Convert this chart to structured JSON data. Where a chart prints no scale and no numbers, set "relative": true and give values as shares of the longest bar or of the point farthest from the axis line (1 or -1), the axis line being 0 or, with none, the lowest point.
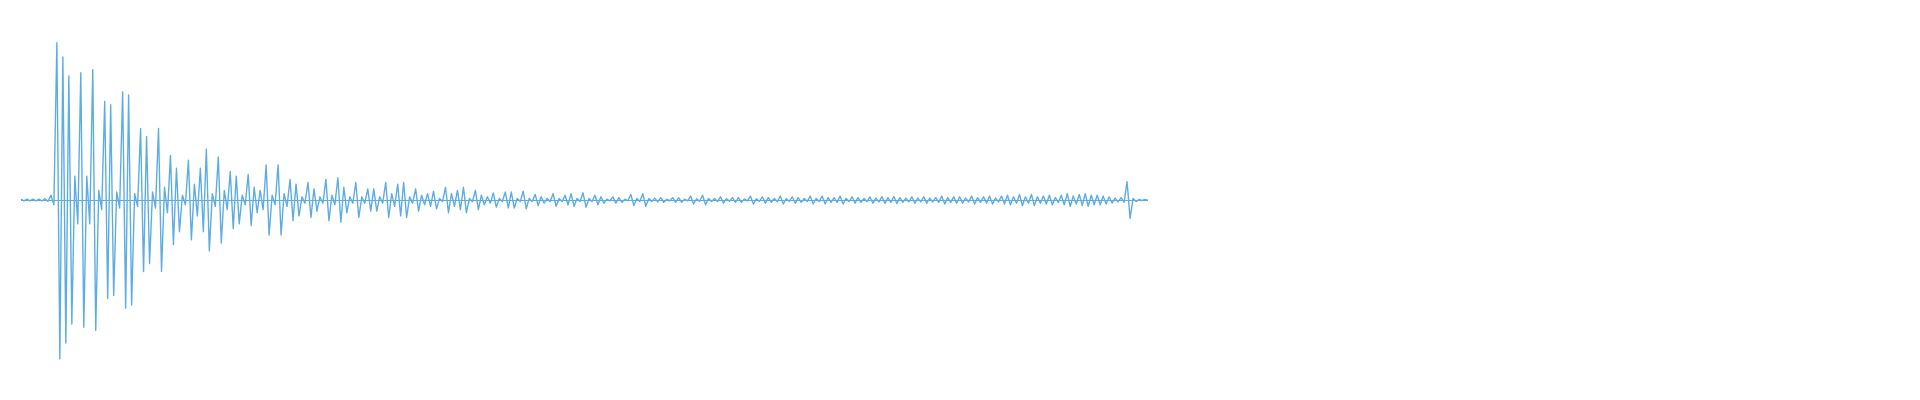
{
  "chart_data": {
    "type": "line",
    "relative": true,
    "grid": false,
    "marker": "none",
    "ref_lines": [
      {
        "axis": "y",
        "value": 0,
        "color": "#5dade2"
      }
    ],
    "categories": [
      null,
      null,
      null,
      null,
      null,
      null,
      null,
      null,
      null,
      null,
      null,
      null,
      null,
      null,
      null,
      null,
      null,
      null,
      null,
      null,
      null,
      null,
      null,
      null,
      null,
      null,
      null,
      null,
      null,
      null,
      null,
      null,
      null,
      null,
      null,
      null,
      null,
      null,
      null,
      null,
      null,
      null,
      null,
      null,
      null,
      null,
      null,
      null,
      null,
      null,
      null,
      null,
      null,
      null,
      null,
      null,
      null,
      null,
      null,
      null,
      null,
      null,
      null,
      null,
      null,
      null,
      null,
      null,
      null,
      null,
      null,
      null,
      null,
      null,
      null,
      null,
      null,
      null,
      null,
      null,
      null,
      null,
      null,
      null,
      null,
      null,
      null,
      null,
      null,
      null,
      null,
      null,
      null,
      null,
      null,
      null,
      null,
      null,
      null,
      null,
      null,
      null,
      null,
      null,
      null,
      null,
      null,
      null,
      null,
      null,
      null,
      null,
      null,
      null,
      null,
      null,
      null,
      null,
      null,
      null,
      null,
      null,
      null,
      null,
      null,
      null,
      null,
      null,
      null,
      null,
      null,
      null,
      null,
      null,
      null,
      null,
      null,
      null,
      null,
      null,
      null,
      null,
      null,
      null,
      null,
      null,
      null,
      null,
      null,
      null,
      null,
      null,
      null,
      null,
      null,
      null,
      null,
      null,
      null,
      null,
      null,
      null,
      null,
      null,
      null,
      null,
      null,
      null,
      null,
      null,
      null,
      null,
      null,
      null,
      null,
      null,
      null,
      null,
      null,
      null,
      null,
      null,
      null,
      null,
      null,
      null,
      null,
      null,
      null,
      null,
      null,
      null,
      null,
      null,
      null,
      null,
      null,
      null,
      null,
      null,
      null,
      null,
      null,
      null,
      null,
      null,
      null,
      null,
      null,
      null,
      null,
      null,
      null,
      null,
      null,
      null,
      null,
      null,
      null,
      null,
      null,
      null,
      null,
      null,
      null,
      null,
      null,
      null,
      null,
      null,
      null,
      null,
      null,
      null,
      null,
      null,
      null,
      null,
      null,
      null,
      null,
      null,
      null,
      null,
      null,
      null,
      null,
      null,
      null,
      null,
      null,
      null,
      null,
      null,
      null,
      null,
      null,
      null,
      null,
      null,
      null,
      null,
      null,
      null,
      null,
      null,
      null,
      null,
      null,
      null,
      null,
      null,
      null,
      null,
      null,
      null,
      null,
      null,
      null,
      null,
      null,
      null,
      null,
      null,
      null,
      null,
      null,
      null,
      null,
      null,
      null,
      null,
      null,
      null,
      null,
      null,
      null,
      null,
      null,
      null,
      null,
      null,
      null,
      null,
      null,
      null,
      null,
      null,
      null,
      null,
      null,
      null,
      null,
      null,
      null,
      null,
      null,
      null,
      null,
      null,
      null,
      null,
      null,
      null,
      null,
      null,
      null,
      null,
      null,
      null,
      null,
      null,
      null,
      null,
      null,
      null,
      null,
      null,
      null,
      null,
      null,
      null,
      null,
      null,
      null,
      null,
      null,
      null,
      null,
      null,
      null,
      null,
      null,
      null,
      null,
      null,
      null,
      null,
      null,
      null,
      null,
      null,
      null,
      null,
      null,
      null,
      null,
      null,
      null,
      null,
      null,
      null,
      null,
      null,
      null,
      null,
      null,
      null
    ],
    "series": [
      {
        "color": "#5dade2",
        "values": [
          0.005,
          -0.005,
          0.005,
          -0.005,
          0.005,
          -0.005,
          0.005,
          -0.005,
          0.008,
          -0.008,
          0.03,
          -0.03,
          0.99,
          -1.0,
          0.9,
          -0.9,
          0.78,
          -0.78,
          0.15,
          -0.15,
          0.8,
          -0.8,
          0.15,
          -0.15,
          0.82,
          -0.82,
          0.06,
          -0.06,
          0.62,
          -0.62,
          0.6,
          -0.6,
          0.05,
          -0.05,
          0.68,
          -0.68,
          0.66,
          -0.66,
          0.04,
          -0.04,
          0.45,
          -0.45,
          0.4,
          -0.4,
          0.05,
          -0.05,
          0.45,
          -0.45,
          0.08,
          -0.08,
          0.28,
          -0.28,
          0.2,
          -0.2,
          0.03,
          -0.03,
          0.25,
          -0.25,
          0.1,
          -0.1,
          0.2,
          -0.2,
          0.32,
          -0.32,
          0.04,
          -0.04,
          0.27,
          -0.27,
          0.06,
          -0.06,
          0.18,
          -0.18,
          0.15,
          -0.15,
          0.03,
          -0.03,
          0.16,
          -0.16,
          0.08,
          -0.08,
          0.06,
          -0.06,
          0.22,
          -0.22,
          0.03,
          -0.03,
          0.22,
          -0.22,
          0.04,
          -0.04,
          0.13,
          -0.13,
          0.1,
          -0.1,
          0.02,
          -0.02,
          0.11,
          -0.11,
          0.07,
          -0.07,
          0.02,
          -0.02,
          0.13,
          -0.13,
          0.03,
          -0.03,
          0.14,
          -0.14,
          0.08,
          -0.08,
          0.02,
          -0.02,
          0.11,
          -0.11,
          0.02,
          -0.02,
          0.07,
          -0.07,
          0.07,
          -0.07,
          0.02,
          -0.02,
          0.11,
          -0.11,
          0.04,
          -0.04,
          0.1,
          -0.1,
          0.11,
          -0.11,
          0.02,
          -0.02,
          0.07,
          -0.07,
          0.03,
          -0.03,
          0.04,
          -0.04,
          0.055,
          -0.055,
          0.01,
          -0.01,
          0.08,
          -0.08,
          0.04,
          -0.04,
          0.06,
          -0.06,
          0.08,
          -0.08,
          0.01,
          -0.01,
          0.06,
          -0.06,
          0.03,
          -0.03,
          0.02,
          -0.02,
          0.045,
          -0.045,
          0.01,
          -0.01,
          0.05,
          -0.05,
          0.05,
          -0.05,
          0.01,
          -0.01,
          0.055,
          -0.055,
          0.01,
          -0.01,
          0.035,
          -0.035,
          0.02,
          -0.02,
          0.01,
          -0.01,
          0.04,
          -0.04,
          0.01,
          -0.01,
          0.03,
          -0.03,
          0.04,
          -0.04,
          0.01,
          -0.01,
          0.045,
          -0.045,
          0.01,
          -0.01,
          0.03,
          -0.03,
          0.02,
          -0.02,
          0.005,
          -0.005,
          0.02,
          -0.02,
          0.015,
          -0.015,
          0.005,
          -0.005,
          0.035,
          -0.035,
          0.01,
          -0.01,
          0.04,
          -0.04,
          0.01,
          -0.01,
          0.012,
          -0.012,
          0.015,
          -0.015,
          0.005,
          -0.005,
          0.015,
          -0.015,
          0.015,
          -0.015,
          0.005,
          -0.005,
          0.025,
          -0.025,
          0.008,
          -0.008,
          0.03,
          -0.03,
          0.01,
          -0.01,
          0.01,
          -0.01,
          0.02,
          -0.02,
          0.008,
          -0.008,
          0.015,
          -0.015,
          0.015,
          -0.015,
          0.006,
          -0.006,
          0.025,
          -0.025,
          0.008,
          -0.008,
          0.02,
          -0.02,
          0.015,
          -0.015,
          0.01,
          -0.01,
          0.025,
          -0.025,
          0.008,
          -0.008,
          0.02,
          -0.02,
          0.015,
          -0.015,
          0.01,
          -0.01,
          0.025,
          -0.025,
          0.01,
          -0.01,
          0.025,
          -0.025,
          0.015,
          -0.015,
          0.015,
          -0.015,
          0.025,
          -0.025,
          0.01,
          -0.01,
          0.02,
          -0.02,
          0.015,
          -0.015,
          0.01,
          -0.01,
          0.02,
          -0.02,
          0.012,
          -0.012,
          0.022,
          -0.022,
          0.015,
          -0.015,
          0.022,
          -0.022,
          0.015,
          -0.015,
          0.012,
          -0.012,
          0.02,
          -0.02,
          0.012,
          -0.012,
          0.02,
          -0.02,
          0.012,
          -0.012,
          0.015,
          -0.015,
          0.025,
          -0.025,
          0.015,
          -0.015,
          0.02,
          -0.02,
          0.02,
          -0.02,
          0.012,
          -0.012,
          0.025,
          -0.025,
          0.015,
          -0.015,
          0.02,
          -0.02,
          0.025,
          -0.025,
          0.012,
          -0.012,
          0.025,
          -0.025,
          0.03,
          -0.03,
          0.02,
          -0.02,
          0.035,
          -0.035,
          0.02,
          -0.02,
          0.035,
          -0.035,
          0.02,
          -0.02,
          0.025,
          -0.025,
          0.03,
          -0.03,
          0.015,
          -0.015,
          0.03,
          -0.03,
          0.04,
          -0.04,
          0.025,
          -0.025,
          0.035,
          -0.035,
          0.04,
          -0.04,
          0.03,
          -0.03,
          0.03,
          -0.03,
          0.025,
          -0.025,
          0.02,
          -0.02,
          0.012,
          -0.012,
          0.015,
          -0.015,
          0.115,
          -0.115,
          0.01,
          -0.01,
          0.003,
          -0.003,
          0.003,
          -0.003
        ]
      }
    ]
  }
}
